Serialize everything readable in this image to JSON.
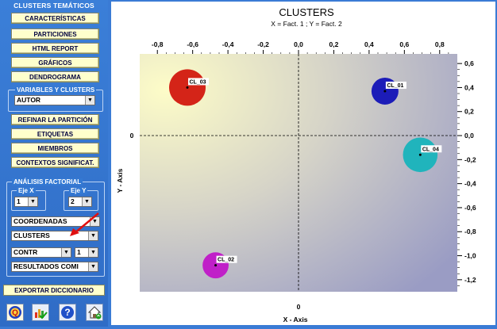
{
  "sidebar": {
    "section_title": "CLUSTERS TEMÁTICOS",
    "buttons": [
      "CARACTERÍSTICAS",
      "PARTICIONES",
      "HTML REPORT",
      "GRÁFICOS",
      "DENDROGRAMA"
    ],
    "variables_group": {
      "label": "VARIABLES Y CLUSTERS",
      "selected": "AUTOR"
    },
    "buttons2": [
      "REFINAR LA PARTICIÓN",
      "ETIQUETAS",
      "MIEMBROS",
      "CONTEXTOS SIGNIFICAT."
    ],
    "factorial": {
      "label": "ANÁLISIS FACTORIAL",
      "eje_x_label": "Eje X",
      "eje_x_value": "1",
      "eje_y_label": "Eje Y",
      "eje_y_value": "2",
      "coordenadas": "COORDENADAS",
      "clusters": "CLUSTERS",
      "contr": "CONTR",
      "contr_num": "1",
      "resultados": "RESULTADOS COMI"
    },
    "export_label": "EXPORTAR DICCIONARIO",
    "icons": [
      "q-logo-icon",
      "chart-check-icon",
      "help-icon",
      "home-icon"
    ]
  },
  "chart_data": {
    "type": "scatter",
    "title": "CLUSTERS",
    "subtitle": "X = Fact. 1 ; Y = Fact. 2",
    "xlabel": "X - Axis",
    "ylabel": "Y - Axis",
    "xlim": [
      -0.9,
      0.9
    ],
    "ylim": [
      -1.3,
      0.68
    ],
    "x_ticks": [
      "-0,8",
      "-0,6",
      "-0,4",
      "-0,2",
      "0,0",
      "0,2",
      "0,4",
      "0,6",
      "0,8"
    ],
    "x_tick_values": [
      -0.8,
      -0.6,
      -0.4,
      -0.2,
      0.0,
      0.2,
      0.4,
      0.6,
      0.8
    ],
    "y_ticks": [
      "0,6",
      "0,4",
      "0,2",
      "0,0",
      "-0,2",
      "-0,4",
      "-0,6",
      "-0,8",
      "-1,0",
      "-1,2"
    ],
    "y_tick_values": [
      0.6,
      0.4,
      0.2,
      0.0,
      -0.2,
      -0.4,
      -0.6,
      -0.8,
      -1.0,
      -1.2
    ],
    "center_x_label": "0",
    "center_y_label": "0",
    "points": [
      {
        "name": "CL_01",
        "x": 0.49,
        "y": 0.37,
        "color": "#1c1cb8",
        "size": 0.5
      },
      {
        "name": "CL_02",
        "x": -0.47,
        "y": -1.08,
        "color": "#c020c8",
        "size": 0.45
      },
      {
        "name": "CL_03",
        "x": -0.63,
        "y": 0.4,
        "color": "#d42418",
        "size": 1.0
      },
      {
        "name": "CL_04",
        "x": 0.69,
        "y": -0.16,
        "color": "#20b4bc",
        "size": 0.9
      }
    ]
  }
}
